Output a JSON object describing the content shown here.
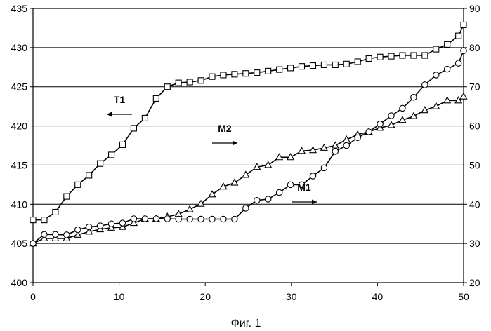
{
  "caption": "Фиг. 1",
  "chart_data": {
    "type": "line",
    "title": "",
    "xlabel": "",
    "ylabel": "",
    "xlim": [
      0,
      50
    ],
    "ylim_left": [
      400,
      435
    ],
    "ylim_right": [
      20,
      90
    ],
    "x_ticks": [
      "0",
      "10",
      "20",
      "30",
      "40",
      "50"
    ],
    "y_ticks_left": [
      "400",
      "405",
      "410",
      "415",
      "420",
      "425",
      "430",
      "435"
    ],
    "y_ticks_right": [
      "20",
      "30",
      "40",
      "50",
      "60",
      "70",
      "80",
      "90"
    ],
    "grid": "horizontal",
    "series": [
      {
        "name": "T1",
        "axis": "left",
        "marker": "square",
        "arrow": "left",
        "x": [
          0,
          1.3,
          2.6,
          3.9,
          5.2,
          6.5,
          7.8,
          9.1,
          10.4,
          11.7,
          13,
          14.3,
          15.6,
          16.9,
          18.2,
          19.5,
          20.8,
          22.1,
          23.4,
          24.7,
          26,
          27.3,
          28.6,
          29.9,
          31.2,
          32.5,
          33.8,
          35.1,
          36.4,
          37.7,
          39,
          40.3,
          41.6,
          42.9,
          44.2,
          45.5,
          46.8,
          48.1,
          49.4,
          50
        ],
        "values": [
          408.0,
          408.0,
          409.0,
          411.0,
          412.5,
          413.7,
          415.2,
          416.3,
          417.6,
          419.7,
          421.0,
          423.5,
          425.0,
          425.5,
          425.6,
          425.8,
          426.3,
          426.5,
          426.6,
          426.7,
          426.8,
          427.0,
          427.2,
          427.4,
          427.6,
          427.7,
          427.8,
          427.8,
          427.9,
          428.2,
          428.6,
          428.8,
          428.9,
          429.0,
          429.0,
          429.0,
          429.8,
          430.4,
          431.5,
          432.9
        ]
      },
      {
        "name": "M2",
        "axis": "right",
        "marker": "triangle",
        "arrow": "right",
        "x": [
          0,
          1.3,
          2.6,
          3.9,
          5.2,
          6.5,
          7.8,
          9.1,
          10.4,
          11.7,
          13,
          14.3,
          15.6,
          16.9,
          18.2,
          19.5,
          20.8,
          22.1,
          23.4,
          24.7,
          26,
          27.3,
          28.6,
          29.9,
          31.2,
          32.5,
          33.8,
          35.1,
          36.4,
          37.7,
          39,
          40.3,
          41.6,
          42.9,
          44.2,
          45.5,
          46.8,
          48.1,
          49.4,
          50
        ],
        "values": [
          30.0,
          31.3,
          31.3,
          31.3,
          32.2,
          33.0,
          33.6,
          34.0,
          34.2,
          35.2,
          36.3,
          36.3,
          36.8,
          37.5,
          38.7,
          40.1,
          42.5,
          44.5,
          45.5,
          47.5,
          49.5,
          50.0,
          52.0,
          52.0,
          53.6,
          53.8,
          54.4,
          55.0,
          56.5,
          57.8,
          58.5,
          59.5,
          60.2,
          61.5,
          62.5,
          64.0,
          65.0,
          66.5,
          66.5,
          67.5
        ]
      },
      {
        "name": "M1",
        "axis": "right",
        "marker": "circle",
        "arrow": "right",
        "x": [
          0,
          1.3,
          2.6,
          3.9,
          5.2,
          6.5,
          7.8,
          9.1,
          10.4,
          11.7,
          13,
          14.3,
          15.6,
          16.9,
          18.2,
          19.5,
          20.8,
          22.1,
          23.4,
          24.7,
          26,
          27.3,
          28.6,
          29.9,
          31.2,
          32.5,
          33.8,
          35.1,
          36.4,
          37.7,
          39,
          40.3,
          41.6,
          42.9,
          44.2,
          45.5,
          46.8,
          48.1,
          49.4,
          50
        ],
        "values": [
          30.0,
          32.3,
          32.3,
          32.2,
          33.5,
          34.2,
          34.5,
          35.0,
          35.2,
          36.3,
          36.3,
          36.3,
          36.3,
          36.2,
          36.2,
          36.2,
          36.2,
          36.2,
          36.2,
          39.0,
          41.0,
          41.3,
          43.0,
          45.0,
          45.0,
          47.2,
          49.3,
          53.5,
          55.0,
          57.0,
          58.5,
          60.5,
          62.6,
          64.5,
          67.3,
          70.5,
          73.0,
          74.5,
          76.0,
          79.2
        ]
      }
    ]
  }
}
